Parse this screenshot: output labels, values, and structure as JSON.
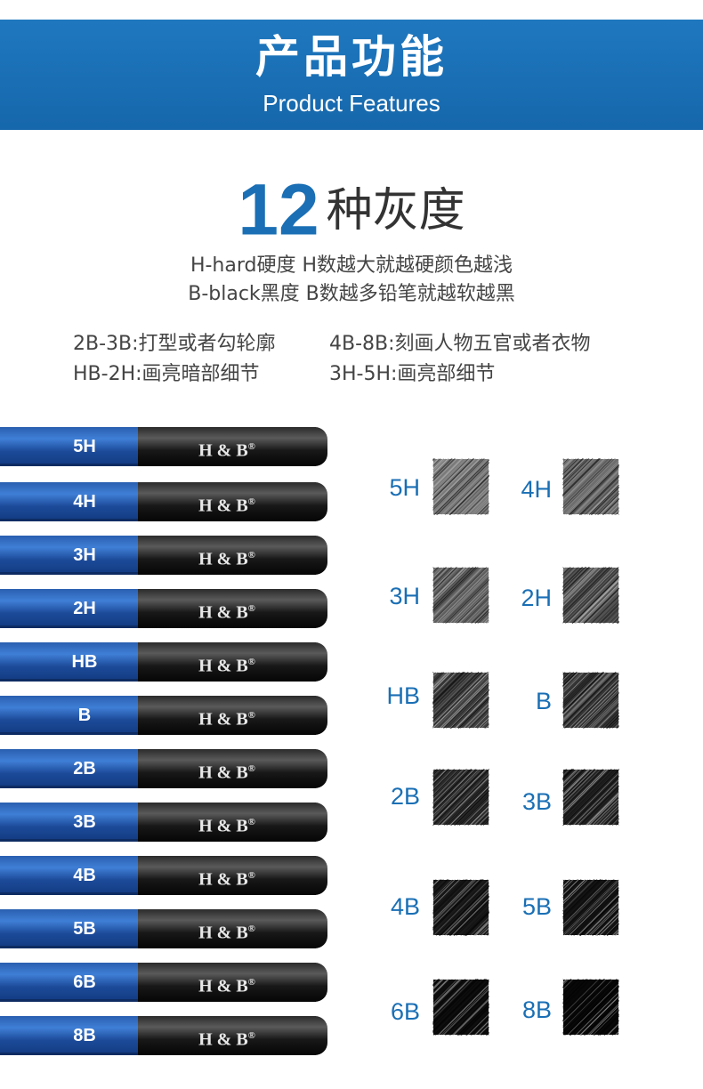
{
  "banner": {
    "title": "产品功能",
    "subtitle": "Product Features",
    "color": "#1a6fb5"
  },
  "heading": {
    "number": "12",
    "text": "种灰度"
  },
  "description": [
    "H-hard硬度 H数越大就越硬颜色越浅",
    "B-black黑度 B数越多铅笔就越软越黑"
  ],
  "usage": [
    "2B-3B:打型或者勾轮廓",
    "4B-8B:刻画人物五官或者衣物",
    "HB-2H:画亮暗部细节",
    "3H-5H:画亮部细节"
  ],
  "pencils": {
    "brand": "H & B",
    "brand_mark": "®",
    "grades": [
      "5H",
      "4H",
      "3H",
      "2H",
      "HB",
      "B",
      "2B",
      "3B",
      "4B",
      "5B",
      "6B",
      "8B"
    ]
  },
  "swatches": [
    {
      "label": "5H",
      "shade": "#7a7a7a"
    },
    {
      "label": "4H",
      "shade": "#6e6e6e"
    },
    {
      "label": "3H",
      "shade": "#5e5e5e"
    },
    {
      "label": "2H",
      "shade": "#525252"
    },
    {
      "label": "HB",
      "shade": "#404040"
    },
    {
      "label": "B",
      "shade": "#353535"
    },
    {
      "label": "2B",
      "shade": "#2a2a2a"
    },
    {
      "label": "3B",
      "shade": "#222222"
    },
    {
      "label": "4B",
      "shade": "#1a1a1a"
    },
    {
      "label": "5B",
      "shade": "#141414"
    },
    {
      "label": "6B",
      "shade": "#0e0e0e"
    },
    {
      "label": "8B",
      "shade": "#080808"
    }
  ]
}
